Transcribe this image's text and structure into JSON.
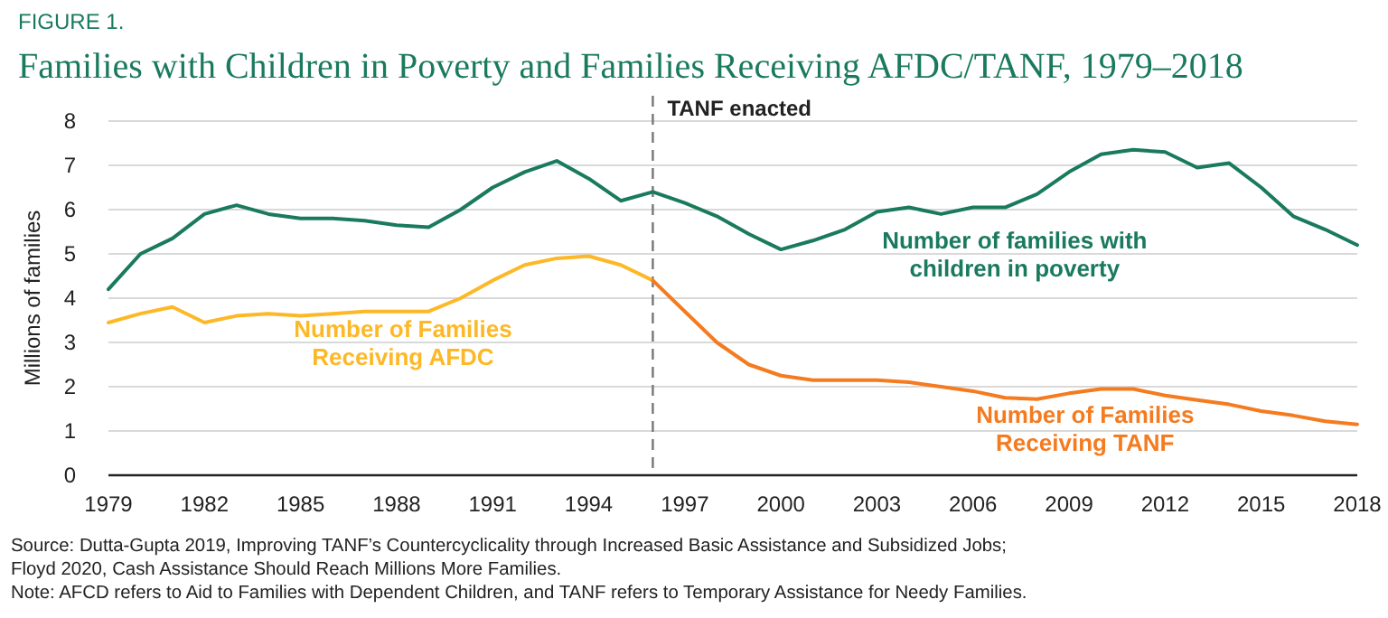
{
  "chart_data": {
    "type": "line",
    "subtitle": "FIGURE 1.",
    "title": "Families with Children in Poverty and Families Receiving AFDC/TANF, 1979–2018",
    "ylabel": "Millions of families",
    "series": [
      {
        "name": "Number of families with children in poverty",
        "color": "#1a7a5e",
        "x": [
          1979,
          1980,
          1981,
          1982,
          1983,
          1984,
          1985,
          1986,
          1987,
          1988,
          1989,
          1990,
          1991,
          1992,
          1993,
          1994,
          1995,
          1996,
          1997,
          1998,
          1999,
          2000,
          2001,
          2002,
          2003,
          2004,
          2005,
          2006,
          2007,
          2008,
          2009,
          2010,
          2011,
          2012,
          2013,
          2014,
          2015,
          2016,
          2017,
          2018
        ],
        "values": [
          4.2,
          5.0,
          5.35,
          5.9,
          6.1,
          5.9,
          5.8,
          5.8,
          5.75,
          5.65,
          5.6,
          6.0,
          6.5,
          6.85,
          7.1,
          6.7,
          6.2,
          6.4,
          6.15,
          5.85,
          5.45,
          5.1,
          5.3,
          5.55,
          5.95,
          6.05,
          5.9,
          6.05,
          6.05,
          6.35,
          6.85,
          7.25,
          7.35,
          7.3,
          6.95,
          7.05,
          6.5,
          5.85,
          5.55,
          5.2
        ]
      },
      {
        "name": "Number of Families Receiving AFDC",
        "color": "#fdb827",
        "x": [
          1979,
          1980,
          1981,
          1982,
          1983,
          1984,
          1985,
          1986,
          1987,
          1988,
          1989,
          1990,
          1991,
          1992,
          1993,
          1994,
          1995,
          1996
        ],
        "values": [
          3.45,
          3.65,
          3.8,
          3.45,
          3.6,
          3.65,
          3.6,
          3.65,
          3.7,
          3.7,
          3.7,
          4.0,
          4.4,
          4.75,
          4.9,
          4.95,
          4.75,
          4.4
        ]
      },
      {
        "name": "Number of Families Receiving TANF",
        "color": "#f47b20",
        "x": [
          1996,
          1997,
          1998,
          1999,
          2000,
          2001,
          2002,
          2003,
          2004,
          2005,
          2006,
          2007,
          2008,
          2009,
          2010,
          2011,
          2012,
          2013,
          2014,
          2015,
          2016,
          2017,
          2018
        ],
        "values": [
          4.4,
          3.7,
          3.0,
          2.5,
          2.25,
          2.15,
          2.15,
          2.15,
          2.1,
          2.0,
          1.9,
          1.75,
          1.72,
          1.85,
          1.95,
          1.95,
          1.8,
          1.7,
          1.6,
          1.45,
          1.35,
          1.22,
          1.15
        ]
      }
    ],
    "xlim": [
      1979,
      2018
    ],
    "xticks": [
      1979,
      1982,
      1985,
      1988,
      1991,
      1994,
      1997,
      2000,
      2003,
      2006,
      2009,
      2012,
      2015,
      2018
    ],
    "ylim": [
      0,
      8
    ],
    "yticks": [
      0,
      1,
      2,
      3,
      4,
      5,
      6,
      7,
      8
    ],
    "grid": "y",
    "marker": "none",
    "line_style": "solid",
    "ref_lines": [
      {
        "axis": "x",
        "value": 1996,
        "label": "TANF enacted",
        "color": "#777777",
        "line_style": "dashed"
      }
    ],
    "annotations": [
      "Source: Dutta-Gupta 2019, Improving TANF’s Countercyclicality through Increased Basic Assistance and Subsidized Jobs;",
      "Floyd 2020, Cash Assistance Should Reach Millions More Families.",
      "Note: AFCD refers to Aid to Families with Dependent Children, and TANF refers to Temporary Assistance for Needy Families."
    ]
  }
}
